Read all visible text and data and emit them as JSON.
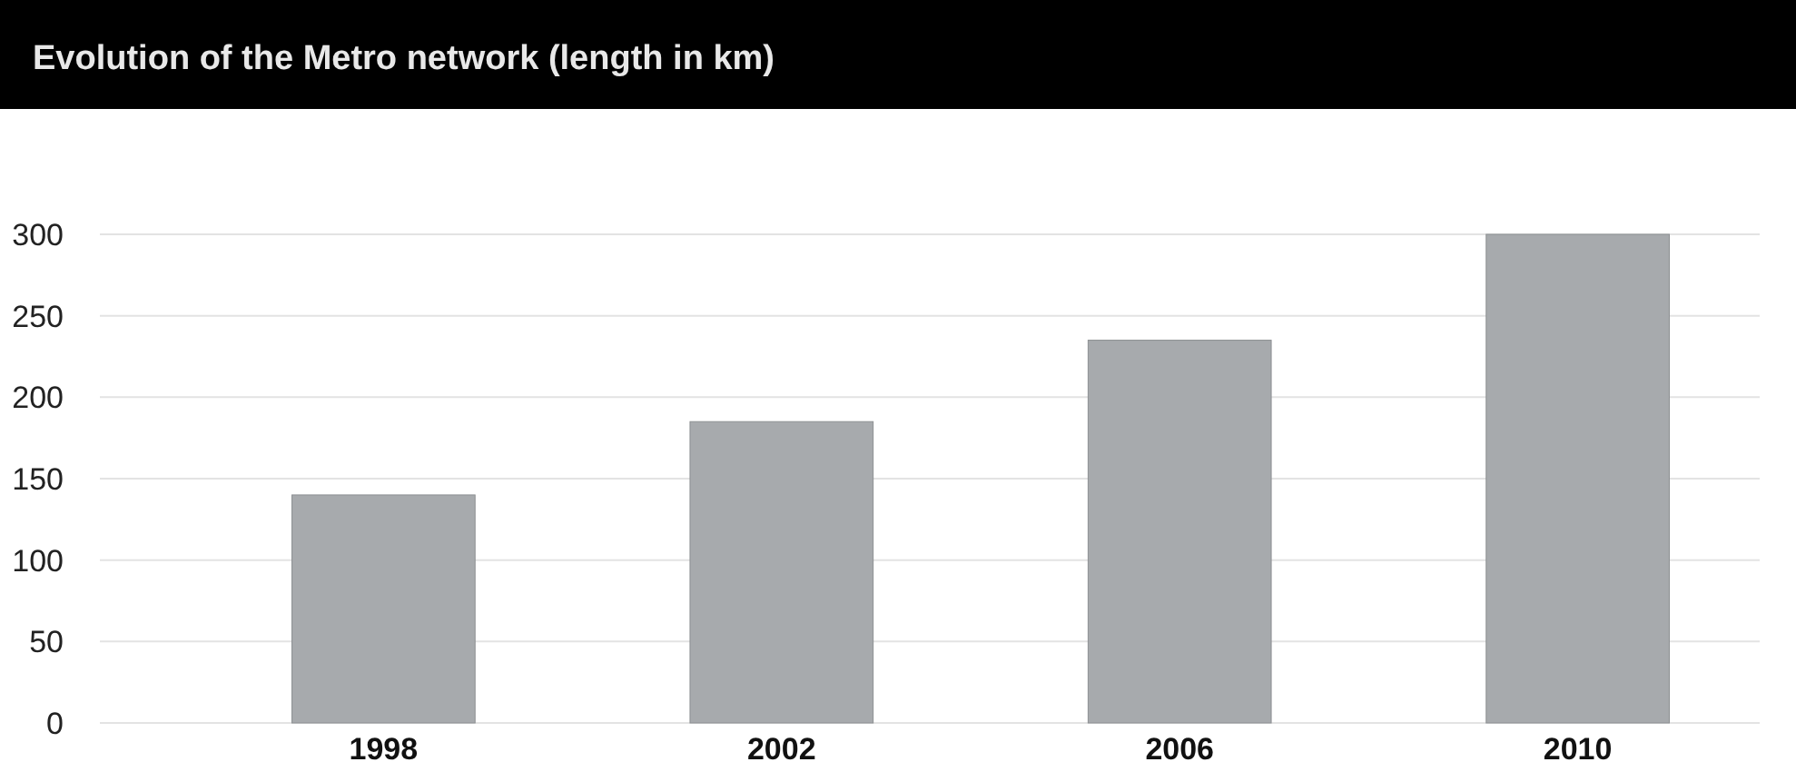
{
  "chart_data": {
    "type": "bar",
    "title": "Evolution of the Metro network (length in km)",
    "categories": [
      "1998",
      "2002",
      "2006",
      "2010"
    ],
    "values": [
      140,
      185,
      235,
      300
    ],
    "color": "#a7aaad",
    "ylim": [
      0,
      300
    ],
    "yticks": [
      0,
      50,
      100,
      150,
      200,
      250,
      300
    ],
    "grid": "y"
  }
}
